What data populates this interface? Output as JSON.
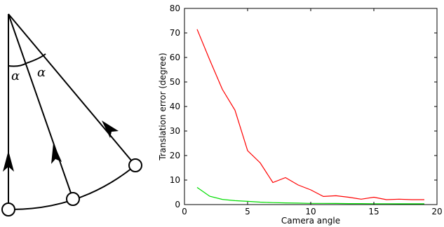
{
  "diagram": {
    "angle_symbol": "α"
  },
  "chart_data": {
    "type": "line",
    "title": "",
    "xlabel": "Camera angle",
    "ylabel": "Translation error (degree)",
    "xlim": [
      0,
      20
    ],
    "ylim": [
      0,
      80
    ],
    "xticks": [
      0,
      5,
      10,
      15,
      20
    ],
    "yticks": [
      0,
      10,
      20,
      30,
      40,
      50,
      60,
      70,
      80
    ],
    "grid": false,
    "series": [
      {
        "color": "#ff0000",
        "x": [
          1,
          2,
          3,
          4,
          5,
          6,
          7,
          8,
          9,
          10,
          11,
          12,
          13,
          14,
          15,
          16,
          17,
          18,
          19
        ],
        "y": [
          71.5,
          59,
          47,
          38.5,
          22,
          17,
          9,
          11,
          8,
          6,
          3.3,
          3.6,
          3,
          2.2,
          3,
          2,
          2.2,
          2,
          2
        ]
      },
      {
        "color": "#00dd00",
        "x": [
          1,
          2,
          3,
          4,
          5,
          6,
          7,
          8,
          9,
          10,
          11,
          12,
          13,
          14,
          15,
          16,
          17,
          18,
          19
        ],
        "y": [
          7,
          3.4,
          2.1,
          1.6,
          1.3,
          1.0,
          0.8,
          0.7,
          0.6,
          0.5,
          0.5,
          0.45,
          0.4,
          0.4,
          0.35,
          0.35,
          0.3,
          0.3,
          0.3
        ]
      }
    ]
  }
}
